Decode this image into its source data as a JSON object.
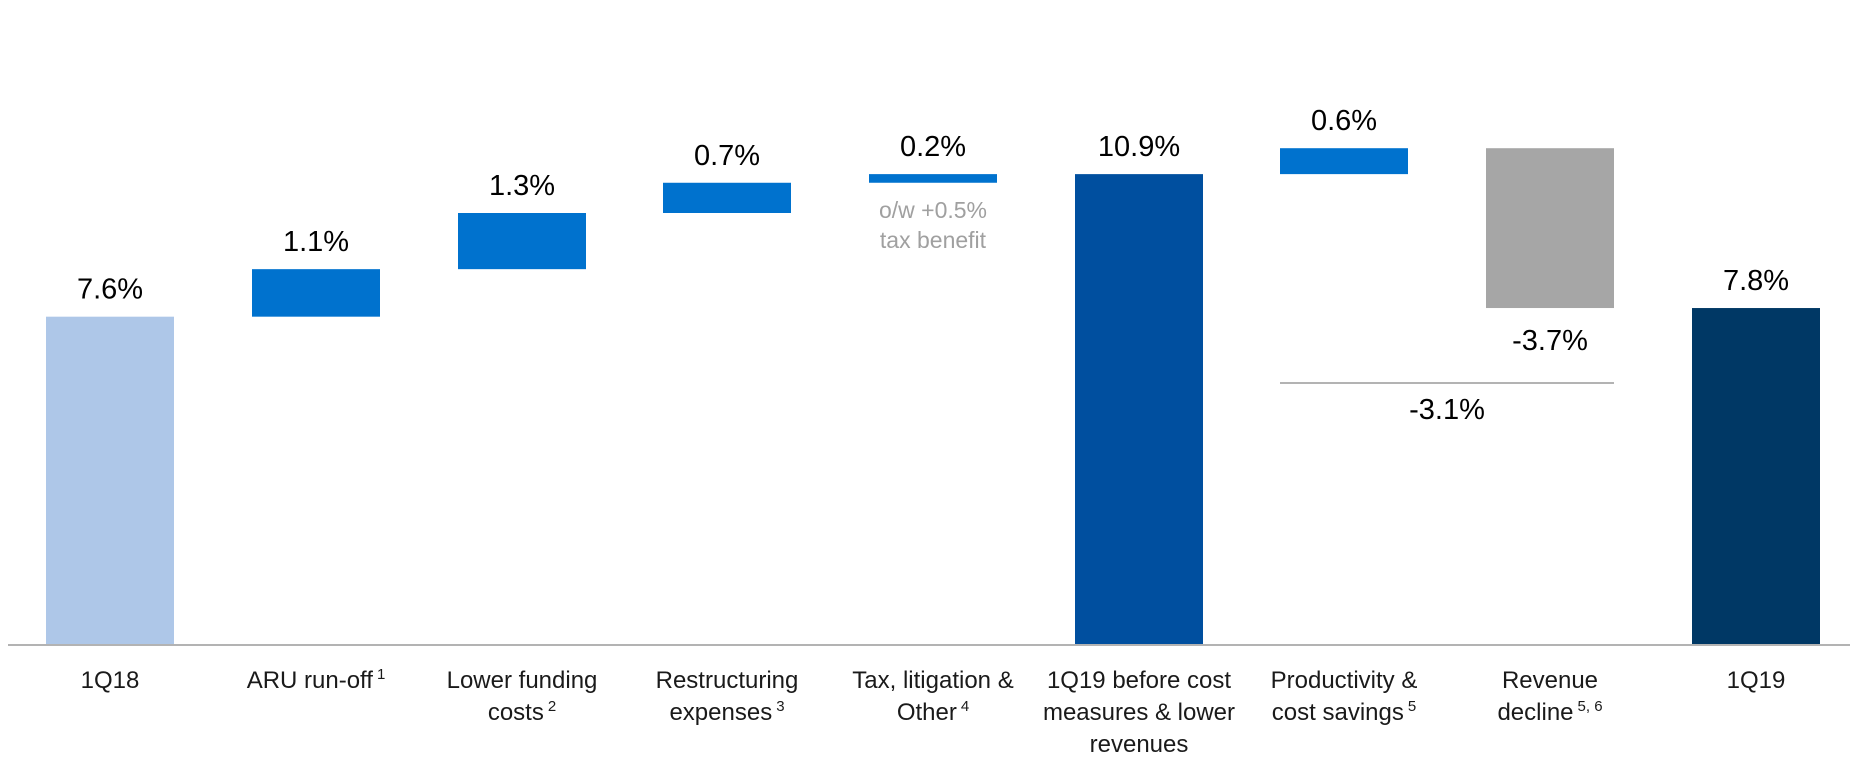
{
  "chart_data": {
    "type": "bar",
    "subtype": "waterfall",
    "title": "",
    "xlabel": "",
    "ylabel": "",
    "grid": false,
    "legend": "none",
    "bars": [
      {
        "name": "1Q18",
        "label": [
          "1Q18"
        ],
        "sup": "",
        "value": 7.6,
        "kind": "total",
        "color": "#aec7e8",
        "value_label": "7.6%"
      },
      {
        "name": "ARU run-off",
        "label": [
          "ARU run-off"
        ],
        "sup": "1",
        "value": 1.1,
        "kind": "delta",
        "color": "#0072ce",
        "value_label": "1.1%"
      },
      {
        "name": "Lower funding costs",
        "label": [
          "Lower funding",
          "costs"
        ],
        "sup": "2",
        "value": 1.3,
        "kind": "delta",
        "color": "#0072ce",
        "value_label": "1.3%"
      },
      {
        "name": "Restructuring expenses",
        "label": [
          "Restructuring",
          "expenses"
        ],
        "sup": "3",
        "value": 0.7,
        "kind": "delta",
        "color": "#0072ce",
        "value_label": "0.7%"
      },
      {
        "name": "Tax, litigation & Other",
        "label": [
          "Tax, litigation &",
          "Other"
        ],
        "sup": "4",
        "value": 0.2,
        "kind": "delta",
        "color": "#0072ce",
        "value_label": "0.2%"
      },
      {
        "name": "1Q19 before cost measures & lower revenues",
        "label": [
          "1Q19 before cost",
          "measures & lower",
          "revenues"
        ],
        "sup": "",
        "value": 10.9,
        "kind": "total",
        "color": "#004f9f",
        "value_label": "10.9%"
      },
      {
        "name": "Productivity & cost savings",
        "label": [
          "Productivity &",
          "cost savings"
        ],
        "sup": "5",
        "value": 0.6,
        "kind": "delta",
        "color": "#0072ce",
        "value_label": "0.6%"
      },
      {
        "name": "Revenue decline",
        "label": [
          "Revenue",
          "decline"
        ],
        "sup": "5, 6",
        "value": -3.7,
        "kind": "delta",
        "color": "#a6a6a6",
        "value_label": "-3.7%"
      },
      {
        "name": "1Q19",
        "label": [
          "1Q19"
        ],
        "sup": "",
        "value": 7.8,
        "kind": "total",
        "color": "#003865",
        "value_label": "7.8%"
      }
    ],
    "annotations": {
      "tax_note": [
        "o/w +0.5%",
        "tax benefit"
      ],
      "combined_label": "-3.1%",
      "combined_value": -3.1
    }
  }
}
